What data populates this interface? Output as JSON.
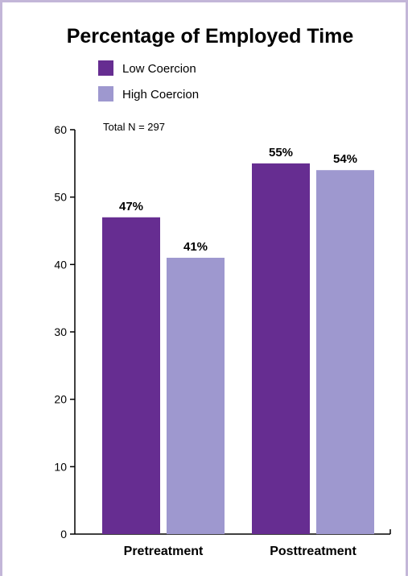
{
  "chart_data": {
    "type": "bar",
    "title": "Percentage of Employed Time",
    "annotation": "Total N = 297",
    "xlabel": "",
    "ylabel": "",
    "categories": [
      "Pretreatment",
      "Posttreatment"
    ],
    "series": [
      {
        "name": "Low Coercion",
        "values": [
          47,
          55
        ],
        "labels": [
          "47%",
          "55%"
        ],
        "color": "#662d91"
      },
      {
        "name": "High Coercion",
        "values": [
          41,
          54
        ],
        "labels": [
          "41%",
          "54%"
        ],
        "color": "#9e98cf"
      }
    ],
    "ylim": [
      0,
      60
    ],
    "yticks": [
      0,
      10,
      20,
      30,
      40,
      50,
      60
    ],
    "legend_position": "top-left",
    "grid": false
  }
}
